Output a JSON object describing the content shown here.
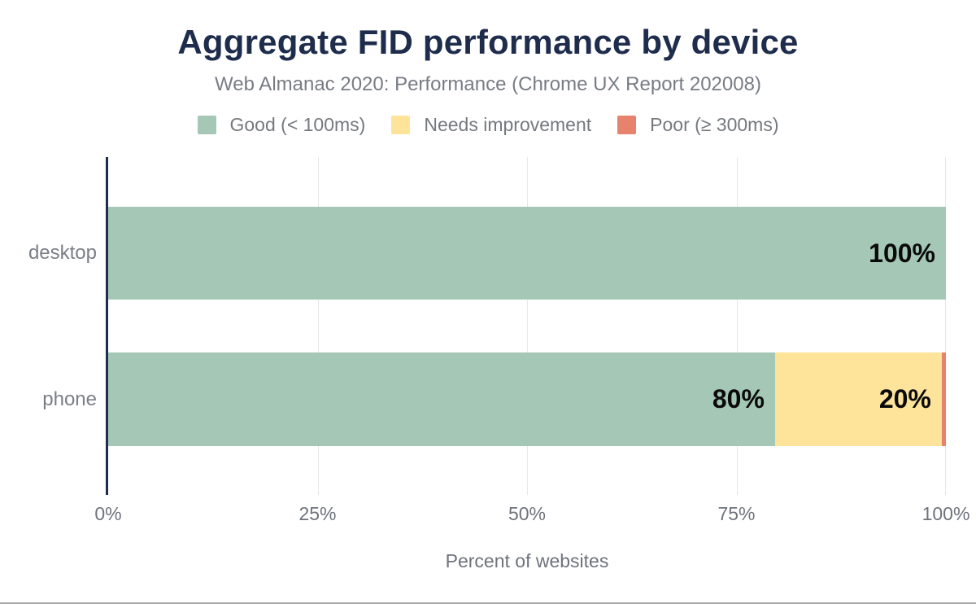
{
  "chart": {
    "title": "Aggregate FID performance by device",
    "subtitle": "Web Almanac 2020: Performance (Chrome UX Report 202008)",
    "xlabel": "Percent of websites"
  },
  "chart_data": {
    "type": "bar",
    "orientation": "horizontal",
    "stacked": true,
    "title": "Aggregate FID performance by device",
    "subtitle": "Web Almanac 2020: Performance (Chrome UX Report 202008)",
    "xlabel": "Percent of websites",
    "ylabel": "",
    "categories": [
      "desktop",
      "phone"
    ],
    "series": [
      {
        "name": "Good (< 100ms)",
        "color": "#a5c8b6",
        "values": [
          100,
          80
        ]
      },
      {
        "name": "Needs improvement",
        "color": "#fde49a",
        "values": [
          0,
          20
        ]
      },
      {
        "name": "Poor (≥ 300ms)",
        "color": "#e7826d",
        "values": [
          0,
          0.5
        ]
      }
    ],
    "bar_labels": [
      [
        "100%",
        "",
        ""
      ],
      [
        "80%",
        "20%",
        ""
      ]
    ],
    "x_ticks": [
      "0%",
      "25%",
      "50%",
      "75%",
      "100%"
    ],
    "x_tick_values": [
      0,
      25,
      50,
      75,
      100
    ],
    "xlim": [
      0,
      100
    ],
    "grid": "vertical",
    "legend_position": "top"
  },
  "colors": {
    "title": "#1f2d4d",
    "subtitle": "#777c85",
    "legend_text": "#75797e",
    "ylabel_text": "#7a7f88",
    "tick_text": "#6e737c",
    "axis_line": "#1f2d4d",
    "gridline": "#e7e7e7",
    "bar_label": "#0a0a0a",
    "bottom_rule": "#a8a8a8"
  }
}
